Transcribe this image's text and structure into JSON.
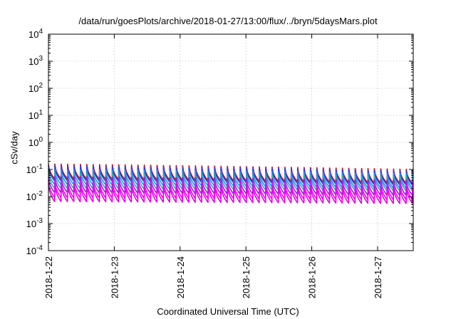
{
  "chart_data": {
    "type": "line",
    "title": "/data/run/goesPlots/archive/2018-01-27/13:00/flux/../bryn/5daysMars.plot",
    "xlabel": "Coordinated Universal Time (UTC)",
    "ylabel": "cSv/day",
    "y_scale": "log",
    "ylim": [
      0.0001,
      10000
    ],
    "y_ticks": [
      {
        "base": "10",
        "exp": "-4"
      },
      {
        "base": "10",
        "exp": "-3"
      },
      {
        "base": "10",
        "exp": "-2"
      },
      {
        "base": "10",
        "exp": "-1"
      },
      {
        "base": "10",
        "exp": "0"
      },
      {
        "base": "10",
        "exp": "1"
      },
      {
        "base": "10",
        "exp": "2"
      },
      {
        "base": "10",
        "exp": "3"
      },
      {
        "base": "10",
        "exp": "4"
      }
    ],
    "xlim": [
      "2018-01-22",
      "2018-01-27 13:00"
    ],
    "x_ticks": [
      "2018-1-22",
      "2018-1-23",
      "2018-1-24",
      "2018-1-25",
      "2018-1-26",
      "2018-1-27"
    ],
    "grid": true,
    "cycle_hours": 2.33,
    "series": [
      {
        "color": "#d40000",
        "top_start": 0.16,
        "top_end": 0.1,
        "bottom_start": 0.045,
        "bottom_end": 0.03
      },
      {
        "color": "#2a3fe0",
        "top_start": 0.14,
        "top_end": 0.09,
        "bottom_start": 0.038,
        "bottom_end": 0.026
      },
      {
        "color": "#1e90ff",
        "top_start": 0.1,
        "top_end": 0.07,
        "bottom_start": 0.028,
        "bottom_end": 0.02
      },
      {
        "color": "#20b2aa",
        "top_start": 0.075,
        "top_end": 0.055,
        "bottom_start": 0.02,
        "bottom_end": 0.016
      },
      {
        "color": "#7a2ad8",
        "top_start": 0.055,
        "top_end": 0.04,
        "bottom_start": 0.014,
        "bottom_end": 0.011
      },
      {
        "color": "#ff00ff",
        "top_start": 0.04,
        "top_end": 0.03,
        "bottom_start": 0.009,
        "bottom_end": 0.0075
      },
      {
        "color": "#e600e6",
        "top_start": 0.03,
        "top_end": 0.022,
        "bottom_start": 0.0065,
        "bottom_end": 0.0055
      }
    ]
  }
}
